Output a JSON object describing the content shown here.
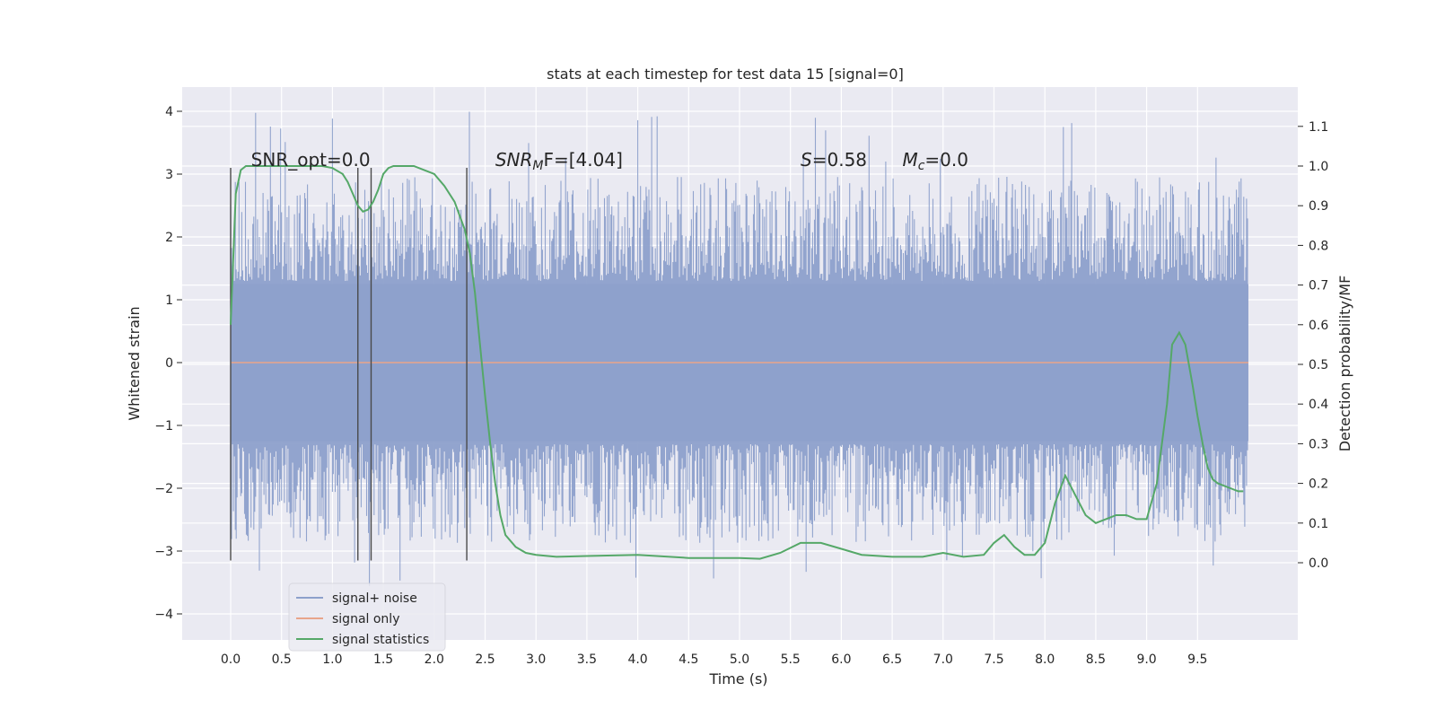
{
  "chart_data": {
    "type": "line",
    "title": "stats at each timestep for test data 15 [signal=0]",
    "xlabel": "Time (s)",
    "ylabel": "Whitened strain",
    "y2label": "Detection probability/MF",
    "xlim": [
      -0.5,
      10.5
    ],
    "ylim": [
      -4.4,
      4.4
    ],
    "y2lim": [
      -0.2,
      1.2
    ],
    "xticks": [
      "0.0",
      "0.5",
      "1.0",
      "1.5",
      "2.0",
      "2.5",
      "3.0",
      "3.5",
      "4.0",
      "4.5",
      "5.0",
      "5.5",
      "6.0",
      "6.5",
      "7.0",
      "7.5",
      "8.0",
      "8.5",
      "9.0",
      "9.5"
    ],
    "yticks": [
      "4",
      "3",
      "2",
      "1",
      "0",
      "−1",
      "−2",
      "−3",
      "−4"
    ],
    "y2ticks": [
      "1.1",
      "1.0",
      "0.9",
      "0.8",
      "0.7",
      "0.6",
      "0.5",
      "0.4",
      "0.3",
      "0.2",
      "0.1",
      "0.0"
    ],
    "grid": true,
    "legend_position": "bottom-left",
    "colors": {
      "background": "#eaeaf2",
      "grid": "#ffffff",
      "noise": "#8da0cb",
      "signal": "#e8a58a",
      "stats": "#55a868",
      "markers": "#4a4a4a"
    },
    "series": [
      {
        "name": "signal+ noise",
        "description_range": [
          -3.6,
          4.0
        ],
        "x_range": [
          0.0,
          10.0
        ],
        "typical_band": [
          -2.0,
          2.0
        ]
      },
      {
        "name": "signal only",
        "x": [
          0.0,
          10.0
        ],
        "y": [
          0.0,
          0.0
        ]
      },
      {
        "name": "signal statistics",
        "axis": "right",
        "x": [
          0.0,
          0.05,
          0.1,
          0.15,
          0.2,
          0.3,
          0.5,
          0.7,
          0.9,
          1.0,
          1.1,
          1.15,
          1.2,
          1.25,
          1.3,
          1.35,
          1.4,
          1.45,
          1.5,
          1.55,
          1.6,
          1.7,
          1.8,
          1.9,
          2.0,
          2.1,
          2.2,
          2.3,
          2.35,
          2.4,
          2.45,
          2.5,
          2.55,
          2.6,
          2.65,
          2.7,
          2.8,
          2.9,
          3.0,
          3.2,
          3.5,
          4.0,
          4.5,
          5.0,
          5.2,
          5.4,
          5.6,
          5.8,
          6.0,
          6.2,
          6.5,
          6.8,
          7.0,
          7.2,
          7.4,
          7.5,
          7.6,
          7.7,
          7.8,
          7.9,
          8.0,
          8.1,
          8.2,
          8.3,
          8.4,
          8.5,
          8.6,
          8.7,
          8.8,
          8.9,
          9.0,
          9.1,
          9.2,
          9.25,
          9.32,
          9.38,
          9.45,
          9.5,
          9.55,
          9.6,
          9.65,
          9.7,
          9.8,
          9.9,
          9.95
        ],
        "y": [
          0.6,
          0.93,
          0.99,
          1.0,
          1.0,
          1.0,
          1.0,
          1.0,
          1.0,
          0.995,
          0.98,
          0.96,
          0.93,
          0.9,
          0.885,
          0.89,
          0.91,
          0.94,
          0.98,
          0.995,
          1.0,
          1.0,
          1.0,
          0.99,
          0.98,
          0.95,
          0.91,
          0.84,
          0.78,
          0.68,
          0.55,
          0.42,
          0.3,
          0.2,
          0.12,
          0.07,
          0.04,
          0.025,
          0.02,
          0.015,
          0.017,
          0.02,
          0.012,
          0.012,
          0.01,
          0.025,
          0.05,
          0.05,
          0.035,
          0.02,
          0.015,
          0.015,
          0.025,
          0.015,
          0.02,
          0.05,
          0.07,
          0.04,
          0.02,
          0.02,
          0.05,
          0.15,
          0.22,
          0.17,
          0.12,
          0.1,
          0.11,
          0.12,
          0.12,
          0.11,
          0.11,
          0.2,
          0.4,
          0.55,
          0.58,
          0.55,
          0.45,
          0.37,
          0.3,
          0.24,
          0.21,
          0.2,
          0.19,
          0.18,
          0.18
        ]
      }
    ],
    "vertical_markers_x": [
      0.0,
      1.25,
      1.38,
      2.32
    ],
    "annotations": [
      {
        "text": "SNR_opt=0.0",
        "x": 0.2,
        "y2": 1.0
      },
      {
        "text_main": "SNR",
        "text_sub": "M",
        "text_tail": "F=[4.04]",
        "x": 2.6,
        "y2": 1.0
      },
      {
        "text_main": "S",
        "text_tail": "=0.58",
        "x": 5.6,
        "y2": 1.0
      },
      {
        "text_main": "M",
        "text_sub": "c",
        "text_tail": "=0.0",
        "x": 6.6,
        "y2": 1.0
      }
    ]
  }
}
